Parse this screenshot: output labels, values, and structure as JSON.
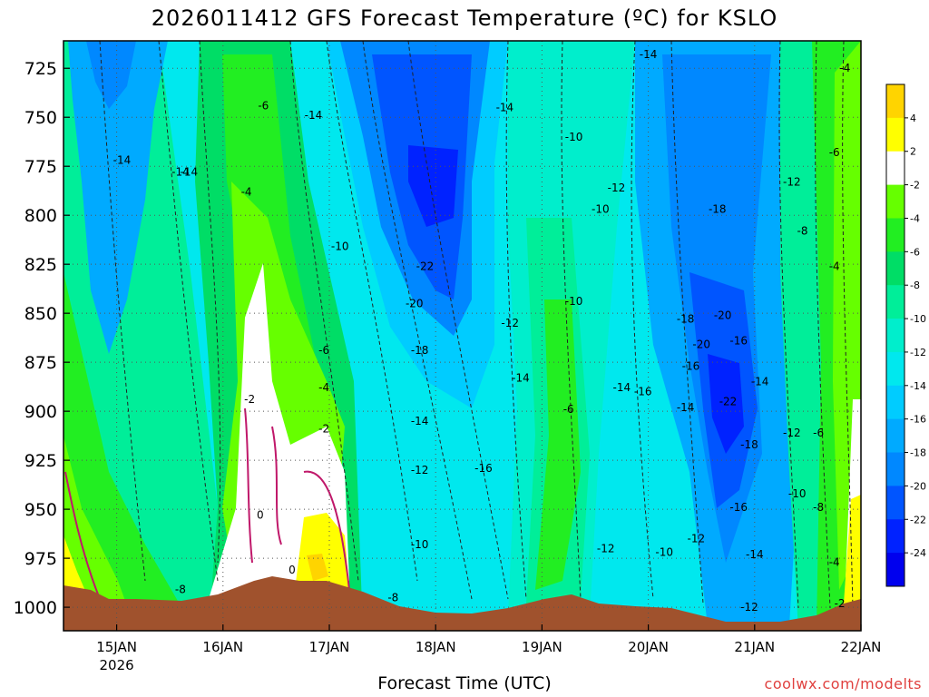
{
  "chart_data": {
    "type": "contour",
    "title": "2026011412 GFS Forecast Temperature (ºC) for KSLO",
    "xlabel": "Forecast Time (UTC)",
    "ylabel": "",
    "x_ticks": [
      "15JAN",
      "16JAN",
      "17JAN",
      "18JAN",
      "19JAN",
      "20JAN",
      "21JAN",
      "22JAN"
    ],
    "x_year_label": "2026",
    "y_ticks": [
      725,
      750,
      775,
      800,
      825,
      850,
      875,
      900,
      925,
      950,
      975,
      1000
    ],
    "ylim": [
      1012,
      711
    ],
    "xlim": [
      14.5,
      22.0
    ],
    "colorbar": {
      "ticks": [
        4,
        2,
        -2,
        -4,
        -6,
        -8,
        -10,
        -12,
        -14,
        -16,
        -18,
        -20,
        -22,
        -24
      ],
      "colors": [
        "#ffd400",
        "#ffff00",
        "#ffffff",
        "#66ff00",
        "#22ee22",
        "#00dd66",
        "#00ee99",
        "#00eecc",
        "#00e8ee",
        "#00ccff",
        "#00aaff",
        "#0088ff",
        "#0055ff",
        "#0022ff",
        "#0000ee"
      ]
    },
    "contour_labels": [
      {
        "text": "-14",
        "x": 15.05,
        "y": 772
      },
      {
        "text": "-14",
        "x": 15.6,
        "y": 778
      },
      {
        "text": "-6",
        "x": 16.38,
        "y": 744
      },
      {
        "text": "-14",
        "x": 16.85,
        "y": 749
      },
      {
        "text": "-4",
        "x": 16.22,
        "y": 788
      },
      {
        "text": "-10",
        "x": 17.1,
        "y": 816
      },
      {
        "text": "-6",
        "x": 16.95,
        "y": 869
      },
      {
        "text": "-4",
        "x": 16.95,
        "y": 888
      },
      {
        "text": "-2",
        "x": 16.25,
        "y": 894
      },
      {
        "text": "-2",
        "x": 16.95,
        "y": 909
      },
      {
        "text": "0",
        "x": 16.35,
        "y": 953
      },
      {
        "text": "0",
        "x": 16.65,
        "y": 981
      },
      {
        "text": "-8",
        "x": 15.6,
        "y": 991
      },
      {
        "text": "-8",
        "x": 17.6,
        "y": 995
      },
      {
        "text": "-22",
        "x": 17.9,
        "y": 826
      },
      {
        "text": "-20",
        "x": 17.8,
        "y": 845
      },
      {
        "text": "-18",
        "x": 17.85,
        "y": 869
      },
      {
        "text": "-14",
        "x": 17.85,
        "y": 905
      },
      {
        "text": "-12",
        "x": 17.85,
        "y": 930
      },
      {
        "text": "-10",
        "x": 17.85,
        "y": 968
      },
      {
        "text": "-16",
        "x": 18.45,
        "y": 929
      },
      {
        "text": "-12",
        "x": 18.7,
        "y": 855
      },
      {
        "text": "-14",
        "x": 18.8,
        "y": 883
      },
      {
        "text": "-14",
        "x": 18.65,
        "y": 745
      },
      {
        "text": "-14",
        "x": 20.0,
        "y": 718
      },
      {
        "text": "-10",
        "x": 19.3,
        "y": 760
      },
      {
        "text": "-12",
        "x": 19.7,
        "y": 786
      },
      {
        "text": "-10",
        "x": 19.55,
        "y": 797
      },
      {
        "text": "-10",
        "x": 19.3,
        "y": 844
      },
      {
        "text": "-6",
        "x": 19.25,
        "y": 899
      },
      {
        "text": "-14",
        "x": 19.75,
        "y": 888
      },
      {
        "text": "-16",
        "x": 19.95,
        "y": 890
      },
      {
        "text": "-12",
        "x": 19.6,
        "y": 970
      },
      {
        "text": "-10",
        "x": 20.15,
        "y": 972
      },
      {
        "text": "-12",
        "x": 20.45,
        "y": 965
      },
      {
        "text": "-18",
        "x": 20.65,
        "y": 797
      },
      {
        "text": "-18",
        "x": 20.35,
        "y": 853
      },
      {
        "text": "-20",
        "x": 20.7,
        "y": 851
      },
      {
        "text": "-20",
        "x": 20.5,
        "y": 866
      },
      {
        "text": "-16",
        "x": 20.85,
        "y": 864
      },
      {
        "text": "-16",
        "x": 20.4,
        "y": 877
      },
      {
        "text": "-22",
        "x": 20.75,
        "y": 895
      },
      {
        "text": "-14",
        "x": 21.05,
        "y": 885
      },
      {
        "text": "-14",
        "x": 20.35,
        "y": 898
      },
      {
        "text": "-18",
        "x": 20.95,
        "y": 917
      },
      {
        "text": "-16",
        "x": 20.85,
        "y": 949
      },
      {
        "text": "-14",
        "x": 21.0,
        "y": 973
      },
      {
        "text": "-12",
        "x": 20.95,
        "y": 1000
      },
      {
        "text": "-12",
        "x": 21.35,
        "y": 911
      },
      {
        "text": "-6",
        "x": 21.6,
        "y": 911
      },
      {
        "text": "-10",
        "x": 21.4,
        "y": 942
      },
      {
        "text": "-8",
        "x": 21.6,
        "y": 949
      },
      {
        "text": "-12",
        "x": 21.35,
        "y": 783
      },
      {
        "text": "-8",
        "x": 21.45,
        "y": 808
      },
      {
        "text": "-6",
        "x": 21.75,
        "y": 768
      },
      {
        "text": "-4",
        "x": 21.85,
        "y": 725
      },
      {
        "text": "-4",
        "x": 21.75,
        "y": 826
      },
      {
        "text": "-4",
        "x": 21.75,
        "y": 977
      },
      {
        "text": "-2",
        "x": 21.8,
        "y": 998
      },
      {
        "text": "-14",
        "x": 15.68,
        "y": 778
      }
    ]
  },
  "footer": {
    "credit": "coolwx.com/modelts"
  }
}
